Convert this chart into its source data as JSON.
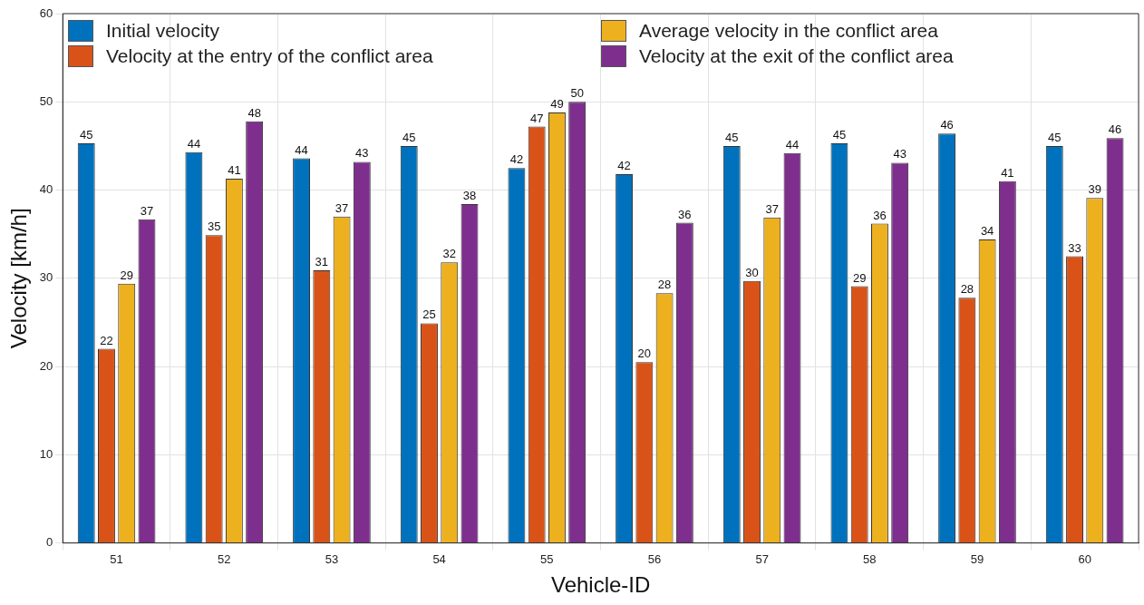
{
  "chart_data": {
    "type": "bar",
    "xlabel": "Vehicle-ID",
    "ylabel": "Velocity [km/h]",
    "categories": [
      "51",
      "52",
      "53",
      "54",
      "55",
      "56",
      "57",
      "58",
      "59",
      "60"
    ],
    "ylim": [
      0,
      60
    ],
    "yticks": [
      0,
      10,
      20,
      30,
      40,
      50,
      60
    ],
    "grid": true,
    "legend": "top",
    "series": [
      {
        "name": "Initial velocity",
        "color": "#0072bd",
        "values": [
          45.3,
          44.3,
          43.6,
          45.0,
          42.5,
          41.8,
          45.0,
          45.3,
          46.4,
          45.0
        ],
        "value_labels": [
          "45",
          "44",
          "44",
          "45",
          "42",
          "42",
          "45",
          "45",
          "46",
          "45"
        ]
      },
      {
        "name": "Velocity at the entry of the conflict area",
        "color": "#d95319",
        "values": [
          22.0,
          34.9,
          30.9,
          24.9,
          47.2,
          20.5,
          29.7,
          29.1,
          27.8,
          32.5
        ],
        "value_labels": [
          "22",
          "35",
          "31",
          "25",
          "47",
          "20",
          "30",
          "29",
          "28",
          "33"
        ]
      },
      {
        "name": "Average velocity in the conflict area",
        "color": "#edb120",
        "values": [
          29.4,
          41.3,
          37.0,
          31.8,
          48.8,
          28.3,
          36.9,
          36.2,
          34.4,
          39.1
        ],
        "value_labels": [
          "29",
          "41",
          "37",
          "32",
          "49",
          "28",
          "37",
          "36",
          "34",
          "39"
        ]
      },
      {
        "name": "Velocity at the exit of the conflict area",
        "color": "#7e2f8e",
        "values": [
          36.7,
          47.8,
          43.2,
          38.4,
          50.0,
          36.3,
          44.2,
          43.1,
          41.0,
          45.9
        ],
        "value_labels": [
          "37",
          "48",
          "43",
          "38",
          "50",
          "36",
          "44",
          "43",
          "41",
          "46"
        ]
      }
    ]
  }
}
